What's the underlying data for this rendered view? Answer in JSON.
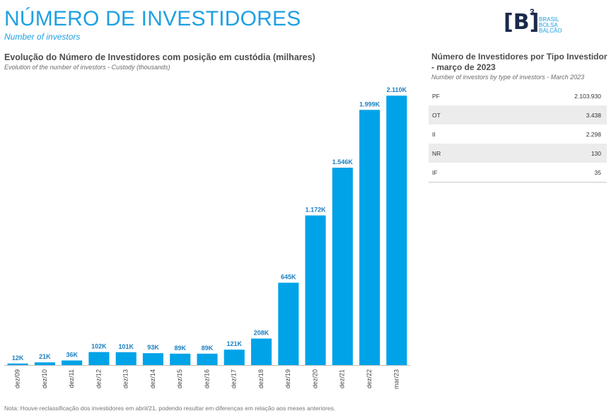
{
  "header": {
    "title": "NÚMERO DE INVESTIDORES",
    "subtitle": "Number of investors"
  },
  "logo": {
    "mark": "[B]",
    "superscript": "3",
    "lines": [
      "BRASIL",
      "BOLSA",
      "BALCÃO"
    ]
  },
  "chart_title": "Evolução do Número de Investidores com posição em custódia (milhares)",
  "chart_subtitle": "Evolution of the number of investors - Custody (thousands)",
  "chart_data": {
    "type": "bar",
    "categories": [
      "dez/09",
      "dez/10",
      "dez/11",
      "dez/12",
      "dez/13",
      "dez/14",
      "dez/15",
      "dez/16",
      "dez/17",
      "dez/18",
      "dez/19",
      "dez/20",
      "dez/21",
      "dez/22",
      "mar/23"
    ],
    "values": [
      12,
      21,
      36,
      102,
      101,
      93,
      89,
      89,
      121,
      208,
      645,
      1172,
      1546,
      1999,
      2110
    ],
    "data_labels": [
      "12K",
      "21K",
      "36K",
      "102K",
      "101K",
      "93K",
      "89K",
      "89K",
      "121K",
      "208K",
      "645K",
      "1.172K",
      "1.546K",
      "1.999K",
      "2.110K"
    ],
    "ylim": [
      0,
      2200
    ],
    "color": "#00a3e8",
    "grid": false,
    "legend": "none"
  },
  "side_table": {
    "title": "Número de Investidores por Tipo Investidor - março de 2023",
    "subtitle": "Number of investors by type of investors  - March 2023",
    "rows": [
      {
        "label": "PF",
        "value": "2.103.930"
      },
      {
        "label": "OT",
        "value": "3.438"
      },
      {
        "label": "II",
        "value": "2.298"
      },
      {
        "label": "NR",
        "value": "130"
      },
      {
        "label": "IF",
        "value": "35"
      }
    ]
  },
  "footnote": "Nota: Houve reclassificação dos investidores em abril/21, podendo resultar em diferenças em relação aos meses anteriores."
}
